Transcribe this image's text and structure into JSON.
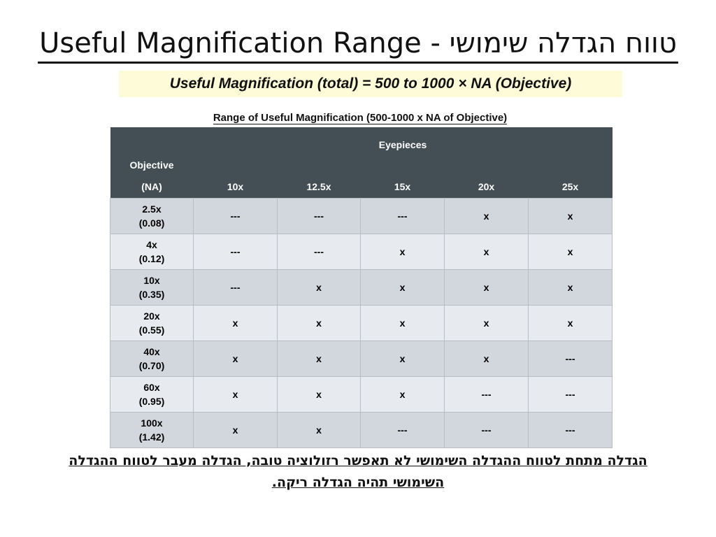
{
  "title": "Useful Magnification Range - טווח הגדלה שימושי",
  "formula": "Useful Magnification (total) = 500 to 1000 × NA (Objective)",
  "table": {
    "caption": "Range of Useful Magnification (500-1000 x NA of Objective)",
    "objective_header": "Objective",
    "eyepieces_header": "Eyepieces",
    "na_header": "(NA)",
    "eyepieces": [
      "10x",
      "12.5x",
      "15x",
      "20x",
      "25x"
    ],
    "rows": [
      {
        "objective": "2.5x",
        "na": "(0.08)",
        "cells": [
          "---",
          "---",
          "---",
          "x",
          "x"
        ]
      },
      {
        "objective": "4x",
        "na": "(0.12)",
        "cells": [
          "---",
          "---",
          "x",
          "x",
          "x"
        ]
      },
      {
        "objective": "10x",
        "na": "(0.35)",
        "cells": [
          "---",
          "x",
          "x",
          "x",
          "x"
        ]
      },
      {
        "objective": "20x",
        "na": "(0.55)",
        "cells": [
          "x",
          "x",
          "x",
          "x",
          "x"
        ]
      },
      {
        "objective": "40x",
        "na": "(0.70)",
        "cells": [
          "x",
          "x",
          "x",
          "x",
          "---"
        ]
      },
      {
        "objective": "60x",
        "na": "(0.95)",
        "cells": [
          "x",
          "x",
          "x",
          "---",
          "---"
        ]
      },
      {
        "objective": "100x",
        "na": "(1.42)",
        "cells": [
          "x",
          "x",
          "---",
          "---",
          "---"
        ]
      }
    ]
  },
  "note": "הגדלה מתחת לטווח ההגדלה השימושי לא תאפשר רזולוציה טובה, הגדלה מעבר לטווח ההגדלה השימושי תהיה הגדלה ריקה."
}
